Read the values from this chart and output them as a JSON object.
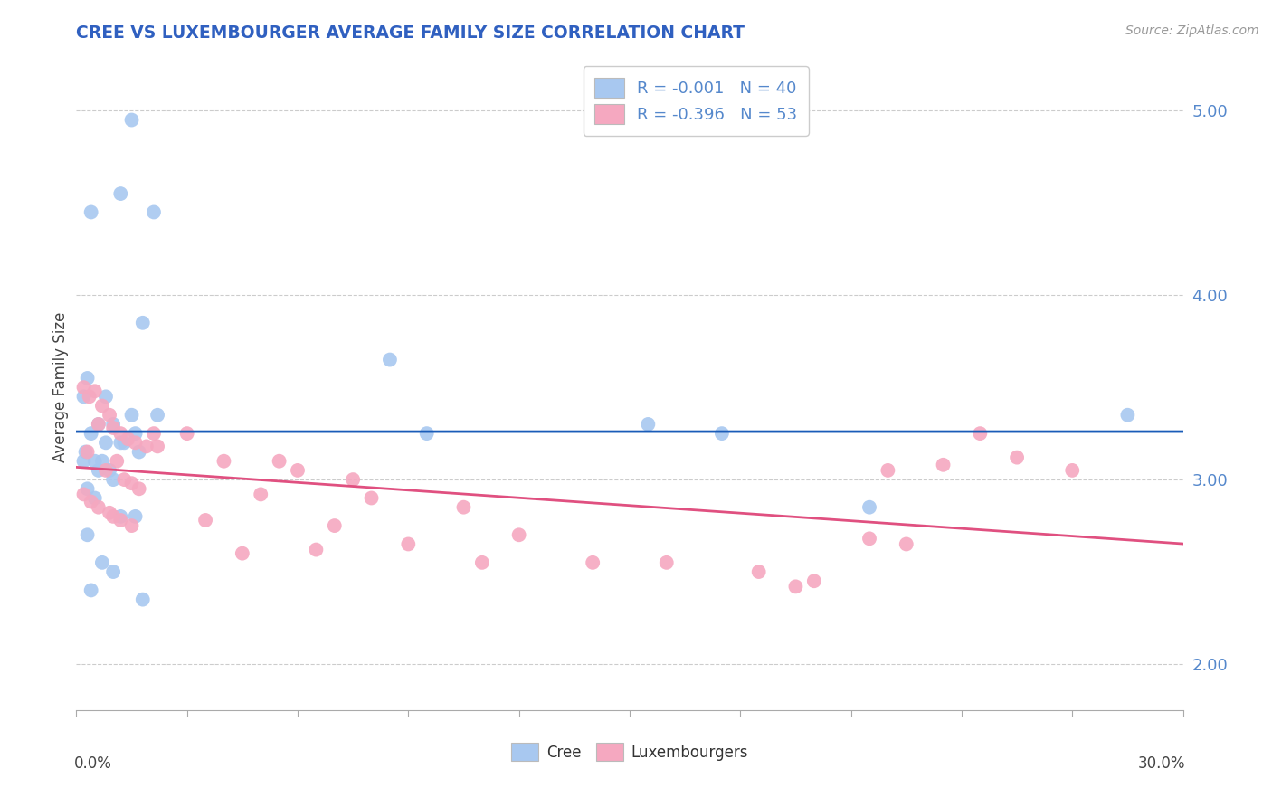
{
  "title": "CREE VS LUXEMBOURGER AVERAGE FAMILY SIZE CORRELATION CHART",
  "source_text": "Source: ZipAtlas.com",
  "ylabel": "Average Family Size",
  "xlim": [
    0.0,
    30.0
  ],
  "ylim": [
    1.75,
    5.25
  ],
  "yticks": [
    2.0,
    3.0,
    4.0,
    5.0
  ],
  "legend_cree": "R = -0.001   N = 40",
  "legend_lux": "R = -0.396   N = 53",
  "cree_color": "#a8c8f0",
  "lux_color": "#f5a8c0",
  "cree_line_color": "#1a5cb8",
  "lux_line_color": "#e05080",
  "title_color": "#3060c0",
  "axis_color": "#5588cc",
  "background_color": "#ffffff",
  "grid_color": "#cccccc",
  "cree_points": [
    [
      1.5,
      4.95
    ],
    [
      1.2,
      4.55
    ],
    [
      0.4,
      4.45
    ],
    [
      2.1,
      4.45
    ],
    [
      1.8,
      3.85
    ],
    [
      8.5,
      3.65
    ],
    [
      0.3,
      3.55
    ],
    [
      0.8,
      3.45
    ],
    [
      0.2,
      3.45
    ],
    [
      1.5,
      3.35
    ],
    [
      2.2,
      3.35
    ],
    [
      0.6,
      3.3
    ],
    [
      1.0,
      3.3
    ],
    [
      9.5,
      3.25
    ],
    [
      1.6,
      3.25
    ],
    [
      0.4,
      3.25
    ],
    [
      1.2,
      3.2
    ],
    [
      0.8,
      3.2
    ],
    [
      1.3,
      3.2
    ],
    [
      1.7,
      3.15
    ],
    [
      0.25,
      3.15
    ],
    [
      0.5,
      3.1
    ],
    [
      0.7,
      3.1
    ],
    [
      0.2,
      3.1
    ],
    [
      0.6,
      3.05
    ],
    [
      0.9,
      3.05
    ],
    [
      1.0,
      3.0
    ],
    [
      0.3,
      2.95
    ],
    [
      0.5,
      2.9
    ],
    [
      1.2,
      2.8
    ],
    [
      1.6,
      2.8
    ],
    [
      0.3,
      2.7
    ],
    [
      0.7,
      2.55
    ],
    [
      1.0,
      2.5
    ],
    [
      0.4,
      2.4
    ],
    [
      1.8,
      2.35
    ],
    [
      21.5,
      2.85
    ],
    [
      28.5,
      3.35
    ],
    [
      15.5,
      3.3
    ],
    [
      17.5,
      3.25
    ]
  ],
  "lux_points": [
    [
      0.2,
      3.5
    ],
    [
      0.5,
      3.48
    ],
    [
      0.35,
      3.45
    ],
    [
      0.7,
      3.4
    ],
    [
      0.9,
      3.35
    ],
    [
      0.6,
      3.3
    ],
    [
      1.0,
      3.28
    ],
    [
      1.2,
      3.25
    ],
    [
      2.1,
      3.25
    ],
    [
      1.4,
      3.22
    ],
    [
      1.6,
      3.2
    ],
    [
      1.9,
      3.18
    ],
    [
      2.2,
      3.18
    ],
    [
      0.3,
      3.15
    ],
    [
      1.1,
      3.1
    ],
    [
      0.8,
      3.05
    ],
    [
      1.3,
      3.0
    ],
    [
      1.5,
      2.98
    ],
    [
      1.7,
      2.95
    ],
    [
      0.2,
      2.92
    ],
    [
      0.4,
      2.88
    ],
    [
      0.6,
      2.85
    ],
    [
      0.9,
      2.82
    ],
    [
      1.0,
      2.8
    ],
    [
      1.2,
      2.78
    ],
    [
      1.5,
      2.75
    ],
    [
      3.0,
      3.25
    ],
    [
      4.0,
      3.1
    ],
    [
      5.5,
      3.1
    ],
    [
      6.0,
      3.05
    ],
    [
      7.5,
      3.0
    ],
    [
      5.0,
      2.92
    ],
    [
      8.0,
      2.9
    ],
    [
      10.5,
      2.85
    ],
    [
      3.5,
      2.78
    ],
    [
      7.0,
      2.75
    ],
    [
      12.0,
      2.7
    ],
    [
      9.0,
      2.65
    ],
    [
      14.0,
      2.55
    ],
    [
      4.5,
      2.6
    ],
    [
      6.5,
      2.62
    ],
    [
      16.0,
      2.55
    ],
    [
      18.5,
      2.5
    ],
    [
      11.0,
      2.55
    ],
    [
      20.0,
      2.45
    ],
    [
      22.5,
      2.65
    ],
    [
      24.5,
      3.25
    ],
    [
      27.0,
      3.05
    ],
    [
      21.5,
      2.68
    ],
    [
      23.5,
      3.08
    ],
    [
      22.0,
      3.05
    ],
    [
      25.5,
      3.12
    ],
    [
      19.5,
      2.42
    ]
  ]
}
